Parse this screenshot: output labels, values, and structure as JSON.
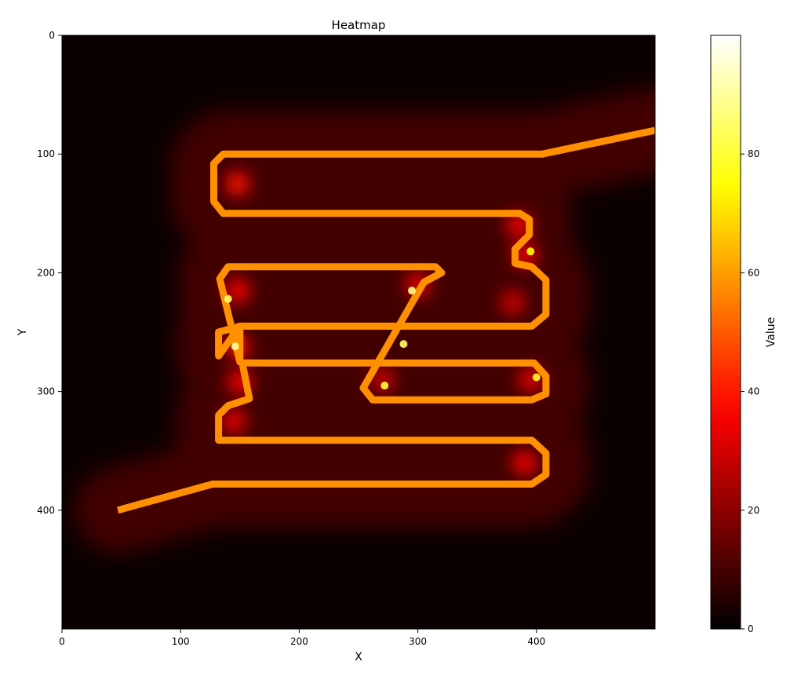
{
  "chart_data": {
    "type": "heatmap",
    "title": "Heatmap",
    "xlabel": "X",
    "ylabel": "Y",
    "colorbar_label": "Value",
    "colormap": "hot",
    "xlim": [
      0,
      500
    ],
    "ylim": [
      500,
      0
    ],
    "y_inverted": true,
    "xticks": [
      0,
      100,
      200,
      300,
      400
    ],
    "yticks": [
      0,
      100,
      200,
      300,
      400
    ],
    "colorbar_range": [
      0,
      100
    ],
    "colorbar_ticks": [
      0,
      20,
      40,
      60,
      80
    ],
    "background_value": 0,
    "halo_value": 12,
    "path_value": 58,
    "path": [
      [
        47,
        400
      ],
      [
        127,
        378
      ],
      [
        396,
        378
      ],
      [
        408,
        370
      ],
      [
        408,
        352
      ],
      [
        396,
        341
      ],
      [
        132,
        341
      ],
      [
        132,
        320
      ],
      [
        140,
        312
      ],
      [
        158,
        306
      ],
      [
        152,
        276
      ],
      [
        398,
        276
      ],
      [
        408,
        287
      ],
      [
        408,
        302
      ],
      [
        396,
        307
      ],
      [
        262,
        307
      ],
      [
        254,
        297
      ],
      [
        305,
        208
      ],
      [
        320,
        200
      ],
      [
        315,
        195
      ],
      [
        140,
        195
      ],
      [
        133,
        205
      ],
      [
        150,
        275
      ],
      [
        150,
        245
      ],
      [
        132,
        250
      ],
      [
        132,
        270
      ],
      [
        150,
        245
      ],
      [
        396,
        245
      ],
      [
        408,
        235
      ],
      [
        408,
        206
      ],
      [
        396,
        195
      ],
      [
        382,
        192
      ],
      [
        382,
        180
      ],
      [
        394,
        168
      ],
      [
        394,
        155
      ],
      [
        386,
        150
      ],
      [
        136,
        150
      ],
      [
        128,
        140
      ],
      [
        128,
        108
      ],
      [
        136,
        100
      ],
      [
        405,
        100
      ],
      [
        500,
        80
      ]
    ],
    "path_hotspots": [
      {
        "x": 146,
        "y": 262,
        "value": 90
      },
      {
        "x": 140,
        "y": 222,
        "value": 85
      },
      {
        "x": 295,
        "y": 215,
        "value": 88
      },
      {
        "x": 288,
        "y": 260,
        "value": 85
      },
      {
        "x": 272,
        "y": 295,
        "value": 80
      },
      {
        "x": 395,
        "y": 182,
        "value": 75
      },
      {
        "x": 400,
        "y": 288,
        "value": 78
      }
    ],
    "hotspots": [
      {
        "x": 148,
        "y": 125,
        "value": 38
      },
      {
        "x": 148,
        "y": 215,
        "value": 36
      },
      {
        "x": 148,
        "y": 262,
        "value": 38
      },
      {
        "x": 150,
        "y": 292,
        "value": 36
      },
      {
        "x": 145,
        "y": 325,
        "value": 34
      },
      {
        "x": 300,
        "y": 210,
        "value": 34
      },
      {
        "x": 385,
        "y": 160,
        "value": 36
      },
      {
        "x": 390,
        "y": 185,
        "value": 36
      },
      {
        "x": 380,
        "y": 225,
        "value": 30
      },
      {
        "x": 270,
        "y": 290,
        "value": 30
      },
      {
        "x": 395,
        "y": 290,
        "value": 34
      },
      {
        "x": 390,
        "y": 360,
        "value": 36
      }
    ]
  }
}
